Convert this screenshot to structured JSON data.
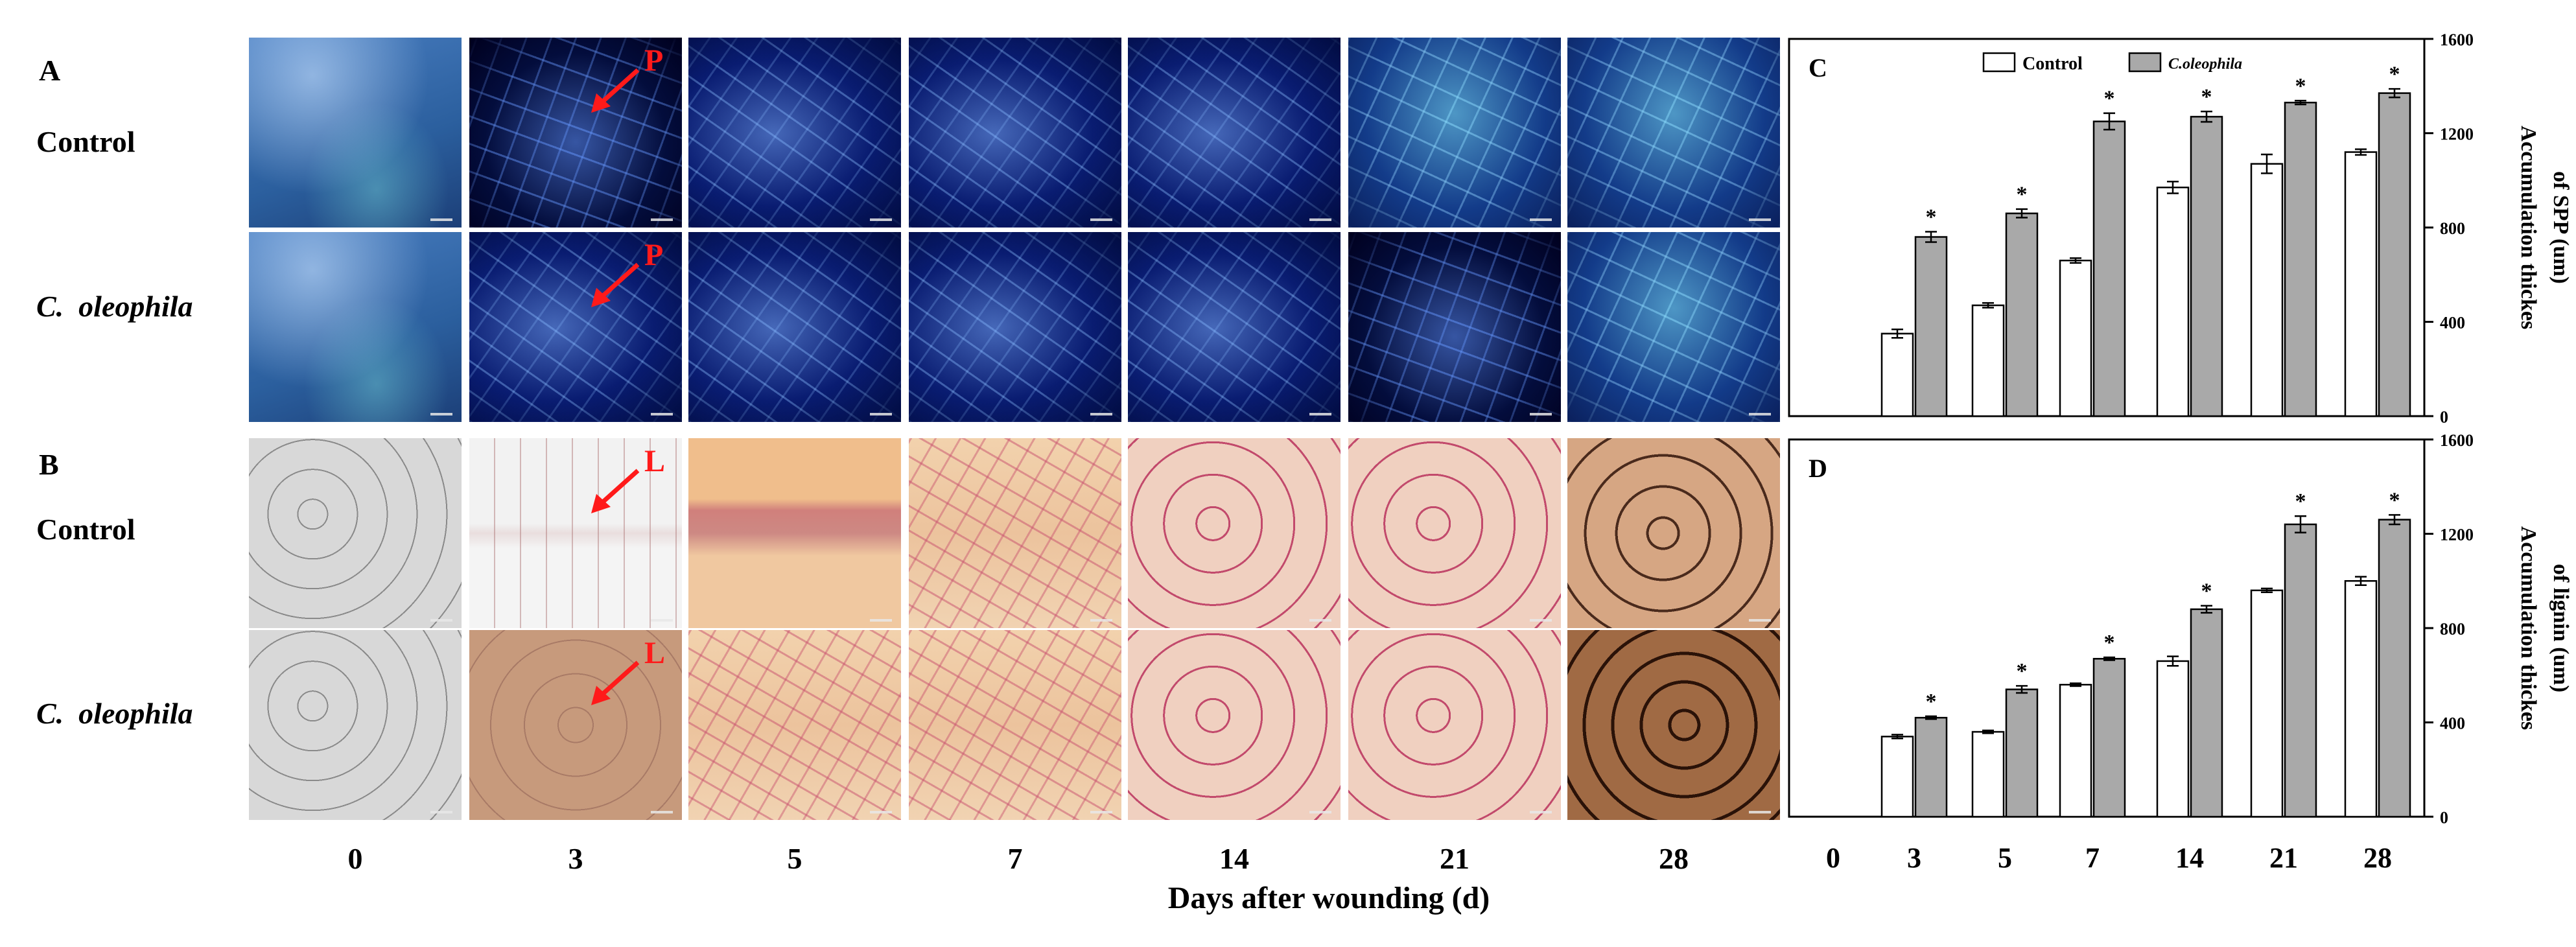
{
  "panels": {
    "A": {
      "letter": "A",
      "rows": [
        "Control",
        "C.  oleophila"
      ],
      "annotation": "P"
    },
    "B": {
      "letter": "B",
      "rows": [
        "Control",
        "C.  oleophila"
      ],
      "annotation": "L"
    }
  },
  "days": [
    "0",
    "3",
    "5",
    "7",
    "14",
    "21",
    "28"
  ],
  "xlabel": "Days after wounding (d)",
  "colors": {
    "control": "#ffffff",
    "oleophila": "#a9a9a9",
    "annotation": "#ff1a1a"
  },
  "chart_data": [
    {
      "panel": "C",
      "type": "bar",
      "categories": [
        "0",
        "3",
        "5",
        "7",
        "14",
        "21",
        "28"
      ],
      "series": [
        {
          "name": "Control",
          "values": [
            0,
            350,
            470,
            660,
            970,
            1070,
            1120
          ],
          "errors": [
            0,
            18,
            10,
            10,
            25,
            40,
            12
          ]
        },
        {
          "name": "C.oleophila",
          "values": [
            0,
            760,
            860,
            1250,
            1270,
            1330,
            1370
          ],
          "errors": [
            0,
            22,
            18,
            35,
            22,
            8,
            18
          ]
        }
      ],
      "significance": [
        "",
        "*",
        "*",
        "*",
        "*",
        "*",
        "*"
      ],
      "ylabel": "Accumulation thickness of SPP (um)",
      "ylabel_lines": [
        "Accumulation thickes",
        "of SPP  (um)"
      ],
      "ylim": [
        0,
        1600
      ],
      "yticks": [
        "0",
        "400",
        "800",
        "1200",
        "1600"
      ],
      "legend": "top"
    },
    {
      "panel": "D",
      "type": "bar",
      "categories": [
        "0",
        "3",
        "5",
        "7",
        "14",
        "21",
        "28"
      ],
      "series": [
        {
          "name": "Control",
          "values": [
            0,
            340,
            360,
            560,
            660,
            960,
            1000
          ],
          "errors": [
            0,
            8,
            6,
            6,
            20,
            8,
            18
          ]
        },
        {
          "name": "C.oleophila",
          "values": [
            0,
            420,
            540,
            670,
            880,
            1240,
            1260
          ],
          "errors": [
            0,
            6,
            15,
            6,
            15,
            35,
            20
          ]
        }
      ],
      "significance": [
        "",
        "*",
        "*",
        "*",
        "*",
        "*",
        "*"
      ],
      "ylabel": "Accumulation thickness of lignin (um)",
      "ylabel_lines": [
        "Accumulation thickes",
        "of lignin  (um)"
      ],
      "ylim": [
        0,
        1600
      ],
      "yticks": [
        "0",
        "400",
        "800",
        "1200",
        "1600"
      ]
    }
  ]
}
